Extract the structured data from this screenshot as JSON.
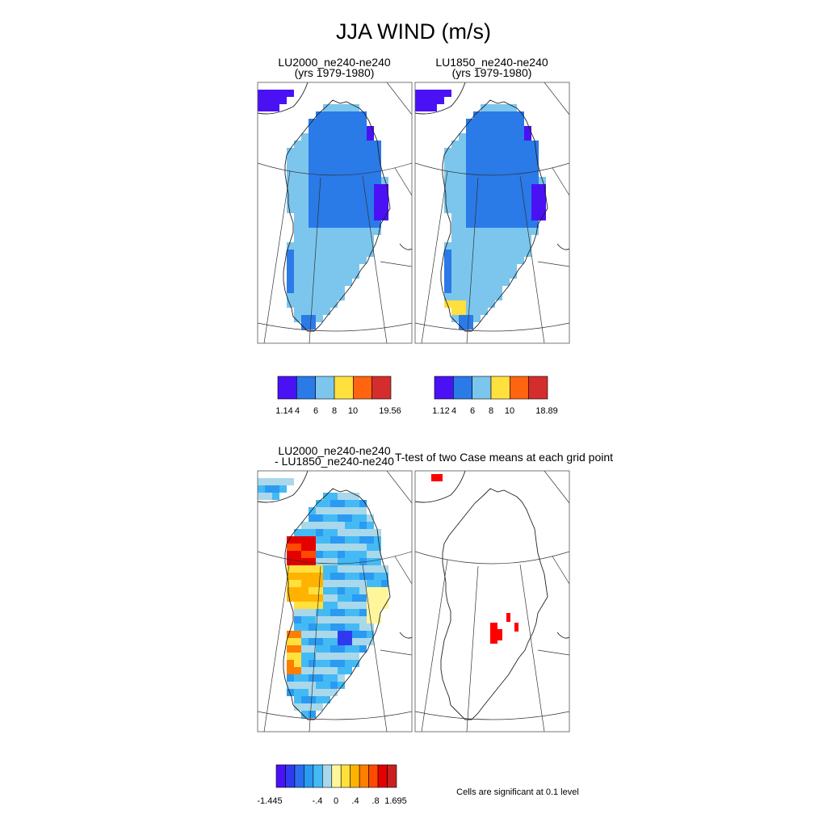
{
  "figure": {
    "title": "JJA WIND (m/s)",
    "significance_note": "Cells are significant at 0.1 level"
  },
  "panels": [
    {
      "title_line1": "LU2000_ne240-ne240",
      "title_line2": "(yrs 1979-1980)"
    },
    {
      "title_line1": "LU1850_ne240-ne240",
      "title_line2": "(yrs 1979-1980)"
    },
    {
      "title_line1": "LU2000_ne240-ne240",
      "title_line2": "- LU1850_ne240-ne240"
    },
    {
      "title_line1": "T-test of two Case means at each grid point",
      "title_line2": ""
    }
  ],
  "colorbars": [
    {
      "colors": [
        "#4b11f5",
        "#2a7ae8",
        "#7cc6ee",
        "#ffe03c",
        "#ff6410",
        "#d42d2d"
      ],
      "tick_labels": [
        "1.14",
        "4",
        "6",
        "8",
        "10",
        "19.56"
      ]
    },
    {
      "colors": [
        "#4b11f5",
        "#2a7ae8",
        "#7cc6ee",
        "#ffe03c",
        "#ff6410",
        "#d42d2d"
      ],
      "tick_labels": [
        "1.12",
        "4",
        "6",
        "8",
        "10",
        "18.89"
      ]
    },
    {
      "colors": [
        "#4b11f5",
        "#2f3af0",
        "#2a6ef0",
        "#2a9af2",
        "#44baf5",
        "#a8d8ea",
        "#fff59a",
        "#ffe03c",
        "#ffb300",
        "#ff7e00",
        "#ff4a00",
        "#e40000",
        "#c82020"
      ],
      "tick_labels": [
        "-1.445",
        "-.4",
        "0",
        ".4",
        ".8",
        "1.695"
      ]
    }
  ],
  "chart_data": [
    {
      "type": "heatmap",
      "title": "LU2000_ne240-ne240 (yrs 1979-1980)",
      "region": "Greenland",
      "levels": [
        1.14,
        4,
        6,
        8,
        10,
        19.56
      ],
      "dominant_values": [
        "6 to 8 over southern and western ice sheet",
        "4 to 6 over central-northern ice sheet",
        "1.14 to 4 at northern and eastern coastal fringes"
      ]
    },
    {
      "type": "heatmap",
      "title": "LU1850_ne240-ne240 (yrs 1979-1980)",
      "region": "Greenland",
      "levels": [
        1.12,
        4,
        6,
        8,
        10,
        18.89
      ],
      "dominant_values": [
        "6 to 8 over southern and western ice sheet",
        "4 to 6 over central-northern ice sheet",
        "8 to 10 at small southwest tip cluster"
      ]
    },
    {
      "type": "heatmap",
      "title": "LU2000_ne240-ne240 - LU1850_ne240-ne240",
      "region": "Greenland",
      "levels": [
        -1.445,
        -0.4,
        0,
        0.4,
        0.8,
        1.695
      ],
      "dominant_values": [
        "-0.4 to 0 over most of the ice sheet",
        "0.4 to 0.8 along the west coast",
        "0 to 0.4 along eastern margin"
      ]
    },
    {
      "type": "heatmap",
      "title": "T-test of two Case means at each grid point",
      "region": "Greenland",
      "significant_cells": "few cells in central-southern interior and northwest coast"
    }
  ]
}
